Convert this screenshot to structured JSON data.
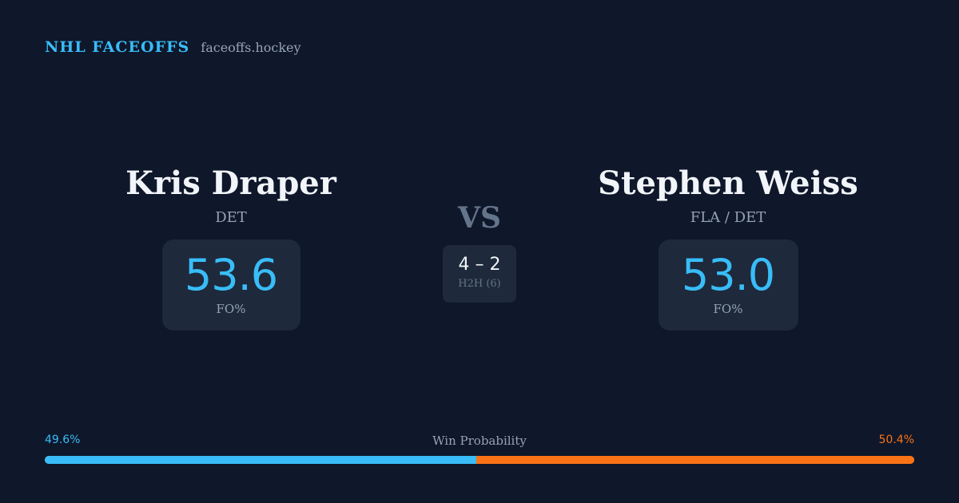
{
  "brand": {
    "name": "NHL FACEOFFS",
    "site": "faceoffs.hockey"
  },
  "player1": {
    "name": "Kris Draper",
    "team": "DET",
    "fo_pct": "53.6",
    "fo_label": "FO%"
  },
  "player2": {
    "name": "Stephen Weiss",
    "team": "FLA / DET",
    "fo_pct": "53.0",
    "fo_label": "FO%"
  },
  "matchup": {
    "vs": "VS",
    "h2h_score": "4 – 2",
    "h2h_label": "H2H (6)"
  },
  "win_probability": {
    "title": "Win Probability",
    "player1_label": "49.6%",
    "player2_label": "50.4%",
    "player1_value": 49.6,
    "player2_value": 50.4,
    "player1_color": "#38bdf8",
    "player2_color": "#f97316"
  }
}
